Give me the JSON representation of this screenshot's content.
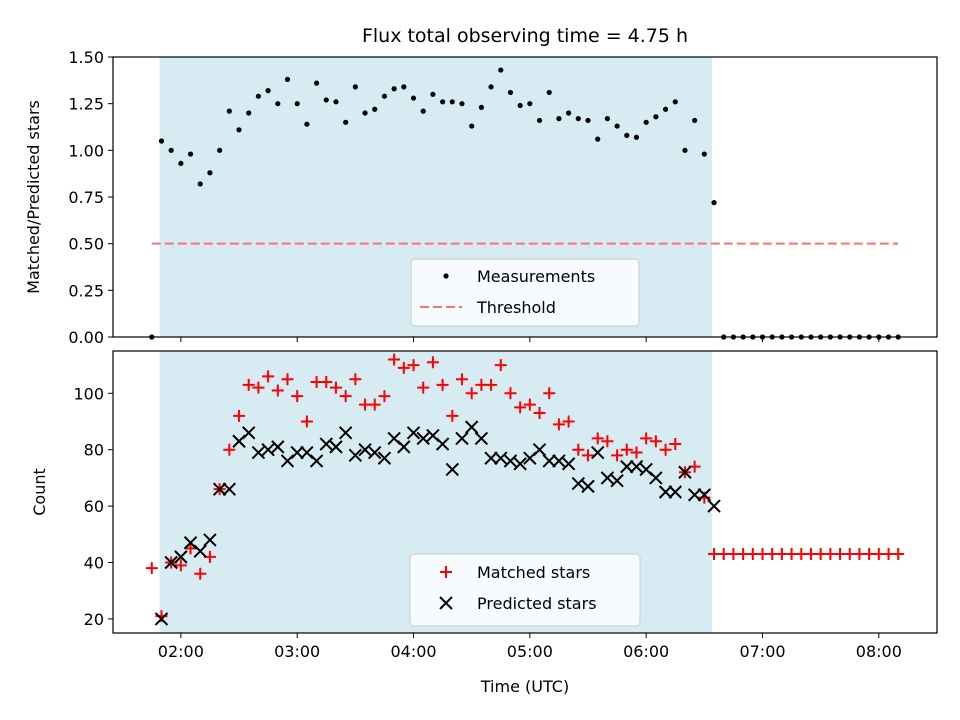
{
  "chart_data": [
    {
      "type": "scatter",
      "title": "Flux total observing time = 4.75 h",
      "xlabel": "",
      "ylabel": "Matched/Predicted stars",
      "xlim": [
        "01:25",
        "08:30"
      ],
      "ylim": [
        0,
        1.5
      ],
      "yticks": [
        "0.00",
        "0.25",
        "0.50",
        "0.75",
        "1.00",
        "1.25",
        "1.50"
      ],
      "shaded_span": [
        "01:49",
        "06:34"
      ],
      "shaded_color": "#add8e6",
      "series": [
        {
          "name": "Measurements",
          "marker": "dot",
          "color": "#000000",
          "x": [
            "01:45",
            "01:50",
            "01:55",
            "02:00",
            "02:05",
            "02:10",
            "02:15",
            "02:20",
            "02:25",
            "02:30",
            "02:35",
            "02:40",
            "02:45",
            "02:50",
            "02:55",
            "03:00",
            "03:05",
            "03:10",
            "03:15",
            "03:20",
            "03:25",
            "03:30",
            "03:35",
            "03:40",
            "03:45",
            "03:50",
            "03:55",
            "04:00",
            "04:05",
            "04:10",
            "04:15",
            "04:20",
            "04:25",
            "04:30",
            "04:35",
            "04:40",
            "04:45",
            "04:50",
            "04:55",
            "05:00",
            "05:05",
            "05:10",
            "05:15",
            "05:20",
            "05:25",
            "05:30",
            "05:35",
            "05:40",
            "05:45",
            "05:50",
            "05:55",
            "06:00",
            "06:05",
            "06:10",
            "06:15",
            "06:20",
            "06:25",
            "06:30",
            "06:35",
            "06:40",
            "06:45",
            "06:50",
            "06:55",
            "07:00",
            "07:05",
            "07:10",
            "07:15",
            "07:20",
            "07:25",
            "07:30",
            "07:35",
            "07:40",
            "07:45",
            "07:50",
            "07:55",
            "08:00",
            "08:05",
            "08:10"
          ],
          "y": [
            0,
            1.05,
            1.0,
            0.93,
            0.98,
            0.82,
            0.88,
            1.0,
            1.21,
            1.11,
            1.2,
            1.29,
            1.32,
            1.25,
            1.38,
            1.25,
            1.14,
            1.36,
            1.27,
            1.26,
            1.15,
            1.34,
            1.2,
            1.22,
            1.29,
            1.33,
            1.34,
            1.28,
            1.21,
            1.3,
            1.26,
            1.26,
            1.25,
            1.13,
            1.23,
            1.34,
            1.43,
            1.31,
            1.24,
            1.25,
            1.16,
            1.31,
            1.17,
            1.2,
            1.17,
            1.16,
            1.06,
            1.17,
            1.13,
            1.08,
            1.07,
            1.15,
            1.18,
            1.22,
            1.26,
            1.0,
            1.16,
            0.98,
            0.72,
            0,
            0,
            0,
            0,
            0,
            0,
            0,
            0,
            0,
            0,
            0,
            0,
            0,
            0,
            0,
            0,
            0,
            0,
            0
          ]
        },
        {
          "name": "Threshold",
          "marker": "dashed-line",
          "color": "#ff7070",
          "x": [
            "01:45",
            "08:10"
          ],
          "y": [
            0.5,
            0.5
          ]
        }
      ],
      "legend": "lower-center"
    },
    {
      "type": "scatter",
      "title": "",
      "xlabel": "Time (UTC)",
      "ylabel": "Count",
      "xlim": [
        "01:25",
        "08:30"
      ],
      "ylim": [
        15,
        115
      ],
      "yticks": [
        "20",
        "40",
        "60",
        "80",
        "100"
      ],
      "xticks": [
        "02:00",
        "03:00",
        "04:00",
        "05:00",
        "06:00",
        "07:00",
        "08:00"
      ],
      "shaded_span": [
        "01:49",
        "06:34"
      ],
      "shaded_color": "#add8e6",
      "series": [
        {
          "name": "Matched stars",
          "marker": "plus",
          "color": "#ff0000",
          "x": [
            "01:45",
            "01:50",
            "01:55",
            "02:00",
            "02:05",
            "02:10",
            "02:15",
            "02:20",
            "02:25",
            "02:30",
            "02:35",
            "02:40",
            "02:45",
            "02:50",
            "02:55",
            "03:00",
            "03:05",
            "03:10",
            "03:15",
            "03:20",
            "03:25",
            "03:30",
            "03:35",
            "03:40",
            "03:45",
            "03:50",
            "03:55",
            "04:00",
            "04:05",
            "04:10",
            "04:15",
            "04:20",
            "04:25",
            "04:30",
            "04:35",
            "04:40",
            "04:45",
            "04:50",
            "04:55",
            "05:00",
            "05:05",
            "05:10",
            "05:15",
            "05:20",
            "05:25",
            "05:30",
            "05:35",
            "05:40",
            "05:45",
            "05:50",
            "05:55",
            "06:00",
            "06:05",
            "06:10",
            "06:15",
            "06:20",
            "06:25",
            "06:30",
            "06:35",
            "06:40",
            "06:45",
            "06:50",
            "06:55",
            "07:00",
            "07:05",
            "07:10",
            "07:15",
            "07:20",
            "07:25",
            "07:30",
            "07:35",
            "07:40",
            "07:45",
            "07:50",
            "07:55",
            "08:00",
            "08:05",
            "08:10"
          ],
          "y": [
            38,
            21,
            40,
            39,
            45,
            36,
            42,
            66,
            80,
            92,
            103,
            102,
            106,
            101,
            105,
            99,
            90,
            104,
            104,
            102,
            99,
            105,
            96,
            96,
            99,
            112,
            109,
            110,
            102,
            111,
            103,
            92,
            105,
            100,
            103,
            103,
            110,
            100,
            95,
            96,
            93,
            100,
            89,
            90,
            80,
            78,
            84,
            83,
            78,
            80,
            79,
            84,
            83,
            80,
            82,
            72,
            74,
            63,
            43,
            43,
            43,
            43,
            43,
            43,
            43,
            43,
            43,
            43,
            43,
            43,
            43,
            43,
            43,
            43,
            43,
            43,
            43,
            43
          ]
        },
        {
          "name": "Predicted stars",
          "marker": "x",
          "color": "#000000",
          "x": [
            "01:50",
            "01:55",
            "02:00",
            "02:05",
            "02:10",
            "02:15",
            "02:20",
            "02:25",
            "02:30",
            "02:35",
            "02:40",
            "02:45",
            "02:50",
            "02:55",
            "03:00",
            "03:05",
            "03:10",
            "03:15",
            "03:20",
            "03:25",
            "03:30",
            "03:35",
            "03:40",
            "03:45",
            "03:50",
            "03:55",
            "04:00",
            "04:05",
            "04:10",
            "04:15",
            "04:20",
            "04:25",
            "04:30",
            "04:35",
            "04:40",
            "04:45",
            "04:50",
            "04:55",
            "05:00",
            "05:05",
            "05:10",
            "05:15",
            "05:20",
            "05:25",
            "05:30",
            "05:35",
            "05:40",
            "05:45",
            "05:50",
            "05:55",
            "06:00",
            "06:05",
            "06:10",
            "06:15",
            "06:20",
            "06:25",
            "06:30",
            "06:35"
          ],
          "y": [
            20,
            40,
            42,
            47,
            44,
            48,
            66,
            66,
            83,
            86,
            79,
            80,
            81,
            76,
            79,
            79,
            76,
            82,
            81,
            86,
            78,
            80,
            79,
            77,
            84,
            81,
            86,
            84,
            85,
            82,
            73,
            84,
            88,
            84,
            77,
            77,
            76,
            75,
            77,
            80,
            76,
            76,
            75,
            68,
            67,
            79,
            70,
            69,
            74,
            74,
            73,
            70,
            65,
            65,
            72,
            64,
            64,
            60
          ]
        }
      ],
      "legend": "lower-center"
    }
  ]
}
